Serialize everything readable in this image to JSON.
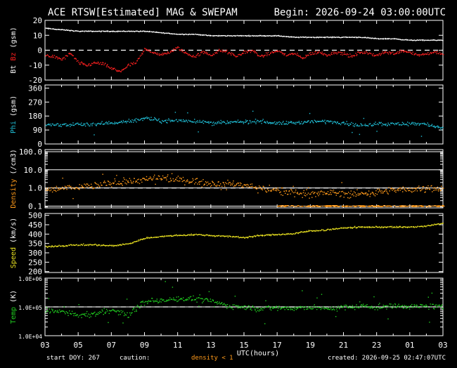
{
  "header": {
    "title": "ACE RTSW[Estimated] MAG & SWEPAM",
    "begin": "Begin: 2026-09-24 03:00:00UTC"
  },
  "footer": {
    "start_doy": "start DOY: 267",
    "caution_label": "caution:",
    "caution_text": "density < 1",
    "created": "created: 2026-09-25 02:47:07UTC"
  },
  "colors": {
    "bt": "#ffffff",
    "bz": "#ff2020",
    "phi": "#20c0d8",
    "density": "#ff9a1a",
    "speed": "#e8e020",
    "temp": "#20d020",
    "caution": "#ff9a1a"
  },
  "x_axis": {
    "label": "UTC(hours)",
    "range_hours": [
      0,
      24
    ],
    "ticks": [
      {
        "h": 0,
        "label": "03"
      },
      {
        "h": 2,
        "label": "05"
      },
      {
        "h": 4,
        "label": "07"
      },
      {
        "h": 6,
        "label": "09"
      },
      {
        "h": 8,
        "label": "11"
      },
      {
        "h": 10,
        "label": "13"
      },
      {
        "h": 12,
        "label": "15"
      },
      {
        "h": 14,
        "label": "17"
      },
      {
        "h": 16,
        "label": "19"
      },
      {
        "h": 18,
        "label": "21"
      },
      {
        "h": 20,
        "label": "23"
      },
      {
        "h": 22,
        "label": "01"
      },
      {
        "h": 24,
        "label": "03"
      }
    ]
  },
  "chart_data": [
    {
      "type": "scatter",
      "id": "mag",
      "ylabel_parts": [
        "Bt",
        "Bz",
        "(gsm)"
      ],
      "scale": "linear",
      "ylim": [
        -20,
        20
      ],
      "yticks": [
        -20,
        -10,
        0,
        10,
        20
      ],
      "ref_line": 0,
      "series": [
        {
          "name": "Bt",
          "color": "bt",
          "points": [
            [
              0,
              15
            ],
            [
              1,
              14
            ],
            [
              2,
              13
            ],
            [
              3,
              13
            ],
            [
              4,
              13
            ],
            [
              5,
              13
            ],
            [
              6,
              13
            ],
            [
              7,
              12
            ],
            [
              8,
              11
            ],
            [
              9,
              11
            ],
            [
              10,
              10
            ],
            [
              11,
              10
            ],
            [
              12,
              10
            ],
            [
              13,
              10
            ],
            [
              14,
              10
            ],
            [
              15,
              9
            ],
            [
              16,
              9
            ],
            [
              17,
              9
            ],
            [
              18,
              9
            ],
            [
              19,
              9
            ],
            [
              20,
              8
            ],
            [
              21,
              8
            ],
            [
              22,
              7
            ],
            [
              23,
              7
            ],
            [
              24,
              7
            ]
          ]
        },
        {
          "name": "Bz",
          "color": "bz",
          "points": [
            [
              0,
              -3
            ],
            [
              0.5,
              -4
            ],
            [
              1,
              -6
            ],
            [
              1.5,
              -2
            ],
            [
              2,
              -8
            ],
            [
              2.5,
              -10
            ],
            [
              3,
              -8
            ],
            [
              3.5,
              -9
            ],
            [
              4,
              -12
            ],
            [
              4.5,
              -14
            ],
            [
              5,
              -10
            ],
            [
              5.5,
              -8
            ],
            [
              6,
              1
            ],
            [
              6.5,
              -1
            ],
            [
              7,
              -3
            ],
            [
              7.5,
              -1
            ],
            [
              8,
              2
            ],
            [
              8.5,
              -2
            ],
            [
              9,
              -4
            ],
            [
              9.5,
              -1
            ],
            [
              10,
              -3
            ],
            [
              10.5,
              0
            ],
            [
              11,
              -1
            ],
            [
              11.5,
              -4
            ],
            [
              12,
              -1
            ],
            [
              12.5,
              0
            ],
            [
              13,
              -4
            ],
            [
              13.5,
              -2
            ],
            [
              14,
              0
            ],
            [
              14.5,
              -3
            ],
            [
              15,
              -2
            ],
            [
              15.5,
              -5
            ],
            [
              16,
              -2
            ],
            [
              16.5,
              -1
            ],
            [
              17,
              -3
            ],
            [
              17.5,
              -1
            ],
            [
              18,
              -2
            ],
            [
              18.5,
              -4
            ],
            [
              19,
              -1
            ],
            [
              19.5,
              -2
            ],
            [
              20,
              -3
            ],
            [
              20.5,
              -1
            ],
            [
              21,
              -2
            ],
            [
              21.5,
              0
            ],
            [
              22,
              -1
            ],
            [
              22.5,
              -3
            ],
            [
              23,
              -2
            ],
            [
              23.5,
              -1
            ],
            [
              24,
              -2
            ]
          ]
        }
      ]
    },
    {
      "type": "scatter",
      "id": "phi",
      "ylabel_parts": [
        "Phi",
        "(gsm)"
      ],
      "scale": "linear",
      "ylim": [
        0,
        380
      ],
      "yticks": [
        0,
        90,
        180,
        270,
        360
      ],
      "series": [
        {
          "name": "Phi",
          "color": "phi",
          "points": [
            [
              0,
              125
            ],
            [
              1,
              125
            ],
            [
              2,
              130
            ],
            [
              3,
              130
            ],
            [
              4,
              140
            ],
            [
              5,
              145
            ],
            [
              6,
              170
            ],
            [
              7,
              150
            ],
            [
              8,
              155
            ],
            [
              9,
              150
            ],
            [
              10,
              140
            ],
            [
              11,
              140
            ],
            [
              12,
              145
            ],
            [
              13,
              150
            ],
            [
              14,
              135
            ],
            [
              15,
              140
            ],
            [
              16,
              145
            ],
            [
              17,
              150
            ],
            [
              18,
              140
            ],
            [
              19,
              120
            ],
            [
              20,
              135
            ],
            [
              21,
              130
            ],
            [
              22,
              135
            ],
            [
              23,
              130
            ],
            [
              24,
              100
            ]
          ]
        }
      ]
    },
    {
      "type": "scatter",
      "id": "density",
      "ylabel_parts": [
        "Density",
        "(/cm3)"
      ],
      "scale": "log",
      "ylim": [
        0.08,
        130
      ],
      "yticks": [
        0.1,
        1.0,
        10.0,
        100.0
      ],
      "ytick_labels": [
        "0.1",
        "1.0",
        "10.0",
        "100.0"
      ],
      "ref_line": 1.0,
      "series": [
        {
          "name": "Density",
          "color": "density",
          "points": [
            [
              0,
              0.8
            ],
            [
              1,
              1.0
            ],
            [
              2,
              1.2
            ],
            [
              3,
              1.5
            ],
            [
              4,
              2.0
            ],
            [
              5,
              2.5
            ],
            [
              6,
              3.0
            ],
            [
              7,
              3.5
            ],
            [
              8,
              3.0
            ],
            [
              9,
              2.5
            ],
            [
              10,
              2.0
            ],
            [
              11,
              1.8
            ],
            [
              12,
              1.5
            ],
            [
              13,
              1.0
            ],
            [
              14,
              0.8
            ],
            [
              15,
              0.6
            ],
            [
              16,
              0.5
            ],
            [
              17,
              0.6
            ],
            [
              18,
              0.5
            ],
            [
              19,
              0.5
            ],
            [
              20,
              0.6
            ],
            [
              21,
              0.8
            ],
            [
              22,
              0.9
            ],
            [
              23,
              1.0
            ],
            [
              24,
              1.0
            ]
          ]
        }
      ]
    },
    {
      "type": "scatter",
      "id": "speed",
      "ylabel_parts": [
        "Speed",
        "(km/s)"
      ],
      "scale": "linear",
      "ylim": [
        195,
        510
      ],
      "yticks": [
        200,
        250,
        300,
        350,
        400,
        450,
        500
      ],
      "series": [
        {
          "name": "Speed",
          "color": "speed",
          "points": [
            [
              0,
              335
            ],
            [
              1,
              340
            ],
            [
              2,
              345
            ],
            [
              3,
              345
            ],
            [
              4,
              340
            ],
            [
              5,
              350
            ],
            [
              6,
              380
            ],
            [
              7,
              390
            ],
            [
              8,
              395
            ],
            [
              9,
              400
            ],
            [
              10,
              395
            ],
            [
              11,
              390
            ],
            [
              12,
              385
            ],
            [
              13,
              395
            ],
            [
              14,
              400
            ],
            [
              15,
              405
            ],
            [
              16,
              420
            ],
            [
              17,
              425
            ],
            [
              18,
              435
            ],
            [
              19,
              440
            ],
            [
              20,
              440
            ],
            [
              21,
              440
            ],
            [
              22,
              440
            ],
            [
              23,
              445
            ],
            [
              24,
              460
            ]
          ]
        }
      ]
    },
    {
      "type": "scatter",
      "id": "temp",
      "ylabel_parts": [
        "Temp",
        "(K)"
      ],
      "scale": "log",
      "ylim": [
        10000,
        1000000
      ],
      "yticks": [
        10000,
        100000,
        1000000
      ],
      "ytick_labels": [
        "1.0E+04",
        "1.0E+05",
        "1.0E+06"
      ],
      "ref_line": 100000,
      "series": [
        {
          "name": "Temp",
          "color": "temp",
          "points": [
            [
              0,
              80000
            ],
            [
              1,
              70000
            ],
            [
              2,
              50000
            ],
            [
              3,
              60000
            ],
            [
              4,
              80000
            ],
            [
              5,
              50000
            ],
            [
              6,
              150000
            ],
            [
              7,
              180000
            ],
            [
              8,
              200000
            ],
            [
              9,
              190000
            ],
            [
              10,
              170000
            ],
            [
              11,
              110000
            ],
            [
              12,
              100000
            ],
            [
              13,
              90000
            ],
            [
              14,
              100000
            ],
            [
              15,
              90000
            ],
            [
              16,
              100000
            ],
            [
              17,
              90000
            ],
            [
              18,
              100000
            ],
            [
              19,
              110000
            ],
            [
              20,
              100000
            ],
            [
              21,
              110000
            ],
            [
              22,
              110000
            ],
            [
              23,
              110000
            ],
            [
              24,
              100000
            ]
          ]
        }
      ]
    }
  ]
}
